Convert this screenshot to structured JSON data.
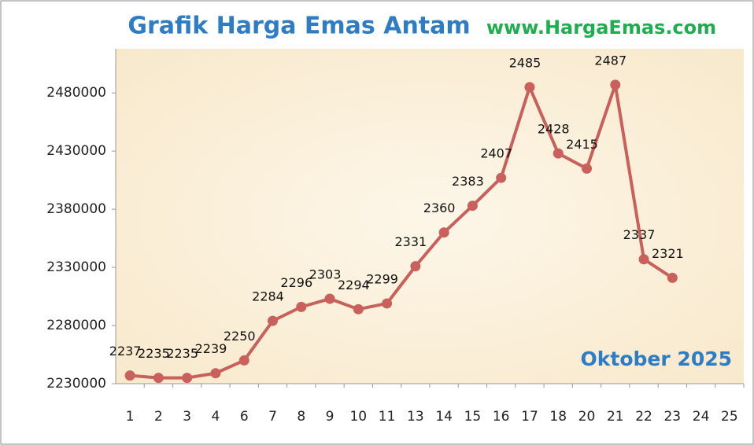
{
  "chart_data": {
    "type": "line",
    "title": "Grafik Harga Emas Antam",
    "subtitle": "www.HargaEmas.com",
    "annotation": "Oktober 2025",
    "categories": [
      "1",
      "2",
      "3",
      "4",
      "6",
      "7",
      "8",
      "9",
      "10",
      "11",
      "13",
      "14",
      "15",
      "16",
      "17",
      "18",
      "20",
      "21",
      "22",
      "23",
      "24",
      "25"
    ],
    "series": [
      {
        "name": "Harga Emas Antam",
        "color": "#c9605c",
        "values": [
          2237000,
          2235000,
          2235000,
          2239000,
          2250000,
          2284000,
          2296000,
          2303000,
          2294000,
          2299000,
          2331000,
          2360000,
          2383000,
          2407000,
          2485000,
          2428000,
          2415000,
          2487000,
          2337000,
          2321000,
          null,
          null
        ],
        "value_labels": [
          "2237",
          "2235",
          "2235",
          "2239",
          "2250",
          "2284",
          "2296",
          "2303",
          "2294",
          "2299",
          "2331",
          "2360",
          "2383",
          "2407",
          "2485",
          "2428",
          "2415",
          "2487",
          "2337",
          "2321",
          null,
          null
        ]
      }
    ],
    "ylim": [
      2230000,
      2518000
    ],
    "yticks": [
      2230000,
      2280000,
      2330000,
      2380000,
      2430000,
      2480000
    ],
    "grid": false
  }
}
